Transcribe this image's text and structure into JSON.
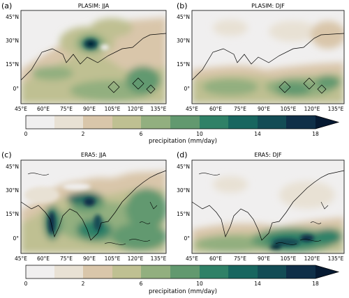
{
  "chart_data": [
    {
      "type": "heatmap",
      "panel_label": "(a)",
      "title": "PLASIM: JJA",
      "x_tick_labels": [
        "45°E",
        "60°E",
        "75°E",
        "90°E",
        "105°E",
        "120°E",
        "135°E"
      ],
      "y_tick_labels": [
        "45°N",
        "30°N",
        "15°N",
        "0°"
      ],
      "xlim": [
        45,
        140
      ],
      "ylim": [
        -10,
        50
      ],
      "hotspots_mm_per_day": [
        {
          "lon": 88,
          "lat": 27,
          "value": 20
        },
        {
          "lon": 97,
          "lat": 27,
          "value": 11
        },
        {
          "lon": 105,
          "lat": 38,
          "value": 7
        },
        {
          "lon": 115,
          "lat": 24,
          "value": 6
        },
        {
          "lon": 120,
          "lat": 5,
          "value": 7
        },
        {
          "lon": 80,
          "lat": 18,
          "value": 5
        }
      ]
    },
    {
      "type": "heatmap",
      "panel_label": "(b)",
      "title": "PLASIM: DJF",
      "x_tick_labels": [
        "45°E",
        "60°E",
        "75°E",
        "90°E",
        "105°E",
        "120°E",
        "135°E"
      ],
      "y_tick_labels": [
        "45°N",
        "30°N",
        "15°N",
        "0°"
      ],
      "xlim": [
        45,
        140
      ],
      "ylim": [
        -10,
        50
      ],
      "hotspots_mm_per_day": [
        {
          "lon": 110,
          "lat": 5,
          "value": 8
        },
        {
          "lon": 125,
          "lat": 0,
          "value": 9
        },
        {
          "lon": 80,
          "lat": 5,
          "value": 6
        },
        {
          "lon": 100,
          "lat": 10,
          "value": 5
        },
        {
          "lon": 135,
          "lat": 5,
          "value": 7
        }
      ]
    },
    {
      "type": "heatmap",
      "panel_label": "(c)",
      "title": "ERA5: JJA",
      "x_tick_labels": [
        "45°E",
        "60°E",
        "75°E",
        "90°E",
        "105°E",
        "120°E",
        "135°E"
      ],
      "y_tick_labels": [
        "45°N",
        "30°N",
        "15°N",
        "0°"
      ],
      "xlim": [
        45,
        140
      ],
      "ylim": [
        -10,
        50
      ],
      "hotspots_mm_per_day": [
        {
          "lon": 74,
          "lat": 14,
          "value": 16
        },
        {
          "lon": 90,
          "lat": 22,
          "value": 16
        },
        {
          "lon": 95,
          "lat": 17,
          "value": 14
        },
        {
          "lon": 110,
          "lat": 20,
          "value": 9
        },
        {
          "lon": 125,
          "lat": 15,
          "value": 10
        },
        {
          "lon": 130,
          "lat": 30,
          "value": 6
        }
      ]
    },
    {
      "type": "heatmap",
      "panel_label": "(d)",
      "title": "ERA5: DJF",
      "x_tick_labels": [
        "45°E",
        "60°E",
        "75°E",
        "90°E",
        "105°E",
        "120°E",
        "135°E"
      ],
      "y_tick_labels": [
        "45°N",
        "30°N",
        "15°N",
        "0°"
      ],
      "xlim": [
        45,
        140
      ],
      "ylim": [
        -10,
        50
      ],
      "hotspots_mm_per_day": [
        {
          "lon": 115,
          "lat": 0,
          "value": 12
        },
        {
          "lon": 110,
          "lat": -5,
          "value": 16
        },
        {
          "lon": 125,
          "lat": 3,
          "value": 12
        },
        {
          "lon": 100,
          "lat": 0,
          "value": 10
        },
        {
          "lon": 135,
          "lat": 0,
          "value": 9
        }
      ]
    }
  ],
  "colorbars": [
    {
      "label": "precipitation (mm/day)",
      "tick_labels": [
        "0",
        "2",
        "6",
        "10",
        "14",
        "18"
      ],
      "levels": [
        0,
        1,
        2,
        4,
        6,
        8,
        10,
        12,
        14,
        16,
        18
      ],
      "extend": "max"
    },
    {
      "label": "precipitation (mm/day)",
      "tick_labels": [
        "0",
        "2",
        "6",
        "10",
        "14",
        "18"
      ],
      "levels": [
        0,
        1,
        2,
        4,
        6,
        8,
        10,
        12,
        14,
        16,
        18
      ],
      "extend": "max"
    }
  ],
  "colors": {
    "bins": [
      "#f0efef",
      "#e8e1d4",
      "#d9c6aa",
      "#bfc092",
      "#92af7f",
      "#62996f",
      "#2f8167",
      "#18665f",
      "#134c55",
      "#0f2f48",
      "#061a32"
    ]
  }
}
